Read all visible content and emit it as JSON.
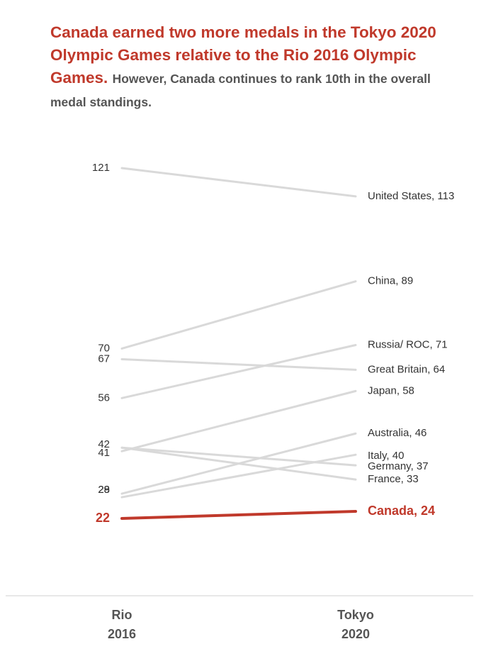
{
  "title": {
    "headline": "Canada earned two more medals in the Tokyo 2020 Olympic Games relative to the Rio 2016 Olympic Games.",
    "subhead": "However, Canada continues to rank 10th in the overall medal standings."
  },
  "colors": {
    "highlight": "#c0392b",
    "line": "#d9d9d9",
    "text": "#333333",
    "axis_text": "#555555"
  },
  "chart_data": {
    "type": "line",
    "title": "Canada earned two more medals in the Tokyo 2020 Olympic Games relative to the Rio 2016 Olympic Games. However, Canada continues to rank 10th in the overall medal standings.",
    "categories": [
      "Rio 2016",
      "Tokyo 2020"
    ],
    "x_labels": [
      [
        "Rio",
        "2016"
      ],
      [
        "Tokyo",
        "2020"
      ]
    ],
    "ylim": [
      22,
      121
    ],
    "series": [
      {
        "name": "United States",
        "values": [
          121,
          113
        ],
        "left_label": "121",
        "right_label": "United States, 113",
        "highlight": false
      },
      {
        "name": "China",
        "values": [
          70,
          89
        ],
        "left_label": "70",
        "right_label": "China, 89",
        "highlight": false
      },
      {
        "name": "Great Britain",
        "values": [
          67,
          64
        ],
        "left_label": "67",
        "right_label": "Great Britain, 64",
        "highlight": false
      },
      {
        "name": "Russia/ ROC",
        "values": [
          56,
          71
        ],
        "left_label": "56",
        "right_label": "Russia/ ROC, 71",
        "highlight": false
      },
      {
        "name": "Japan",
        "values": [
          41,
          58
        ],
        "left_label": "41",
        "right_label": "Japan, 58",
        "highlight": false
      },
      {
        "name": "Germany",
        "values": [
          42,
          37
        ],
        "left_label": "42",
        "right_label": "Germany, 37",
        "highlight": false
      },
      {
        "name": "France",
        "values": [
          42,
          33
        ],
        "left_label": null,
        "right_label": "France, 33",
        "highlight": false
      },
      {
        "name": "Australia",
        "values": [
          29,
          46
        ],
        "left_label": "29",
        "right_label": "Australia, 46",
        "highlight": false
      },
      {
        "name": "Italy",
        "values": [
          28,
          40
        ],
        "left_label": "28",
        "right_label": "Italy, 40",
        "highlight": false
      },
      {
        "name": "Canada",
        "values": [
          22,
          24
        ],
        "left_label": "22",
        "right_label": "Canada, 24",
        "highlight": true
      }
    ]
  }
}
